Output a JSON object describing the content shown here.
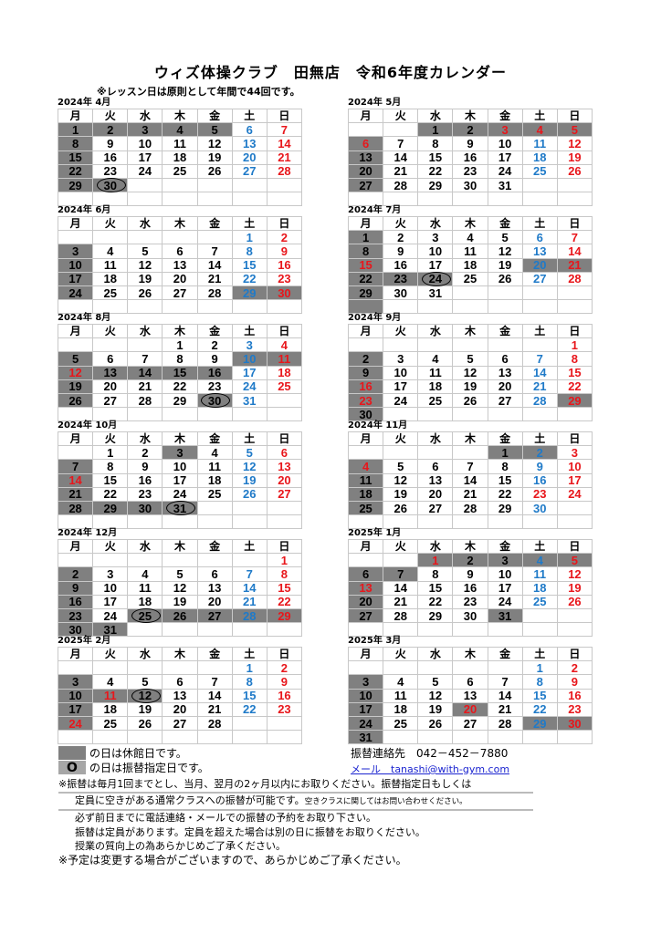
{
  "title": "ウィズ体操クラブ　田無店　令和6年度カレンダー",
  "subtitle": "※レッスン日は原則として年間で44回です。",
  "weekdays": [
    "月",
    "火",
    "水",
    "木",
    "金",
    "土",
    "日"
  ],
  "colors": {
    "saturday": "#1f7ac8",
    "holiday": "#e8161b",
    "closed_fill": "#808080",
    "grid": "#c8c8c8"
  },
  "months": [
    {
      "label": "2024年 4月",
      "start": 0,
      "days": 30,
      "closed": [
        1,
        2,
        3,
        4,
        5,
        8,
        15,
        22,
        29,
        30
      ],
      "red": [],
      "circled": [
        30
      ],
      "closed_empty_cells": []
    },
    {
      "label": "2024年 5月",
      "start": 2,
      "days": 31,
      "closed": [
        1,
        2,
        3,
        4,
        5,
        6,
        13,
        20,
        27
      ],
      "red": [
        3,
        4,
        6
      ],
      "circled": [],
      "closed_empty_cells": []
    },
    {
      "label": "2024年 6月",
      "start": 5,
      "days": 30,
      "closed": [
        3,
        10,
        17,
        24,
        29,
        30
      ],
      "red": [],
      "circled": [],
      "closed_empty_cells": []
    },
    {
      "label": "2024年 7月",
      "start": 0,
      "days": 31,
      "closed": [
        1,
        8,
        15,
        20,
        21,
        22,
        23,
        24,
        29
      ],
      "red": [
        15
      ],
      "circled": [
        24
      ],
      "closed_empty_cells": [
        35
      ]
    },
    {
      "label": "2024年 8月",
      "start": 3,
      "days": 31,
      "closed": [
        5,
        10,
        11,
        12,
        13,
        14,
        15,
        16,
        19,
        26,
        30
      ],
      "red": [
        12
      ],
      "circled": [
        30
      ],
      "closed_empty_cells": []
    },
    {
      "label": "2024年 9月",
      "start": 6,
      "days": 30,
      "closed": [
        2,
        9,
        16,
        23,
        29,
        30
      ],
      "red": [
        16,
        23
      ],
      "circled": [],
      "closed_empty_cells": []
    },
    {
      "label": "2024年 10月",
      "start": 1,
      "days": 31,
      "closed": [
        3,
        7,
        14,
        21,
        28,
        29,
        30,
        31
      ],
      "red": [
        14
      ],
      "circled": [
        31
      ],
      "closed_empty_cells": []
    },
    {
      "label": "2024年 11月",
      "start": 4,
      "days": 30,
      "closed": [
        1,
        2,
        4,
        11,
        18,
        25
      ],
      "red": [
        4,
        23
      ],
      "circled": [],
      "closed_empty_cells": []
    },
    {
      "label": "2024年 12月",
      "start": 6,
      "days": 31,
      "closed": [
        2,
        9,
        16,
        23,
        25,
        26,
        27,
        28,
        29,
        30,
        31
      ],
      "red": [],
      "circled": [
        25
      ],
      "closed_empty_cells": []
    },
    {
      "label": "2025年 1月",
      "start": 2,
      "days": 31,
      "closed": [
        1,
        2,
        3,
        4,
        5,
        6,
        7,
        13,
        20,
        27,
        31
      ],
      "red": [
        1,
        13
      ],
      "circled": [],
      "closed_empty_cells": []
    },
    {
      "label": "2025年 2月",
      "start": 5,
      "days": 28,
      "closed": [
        3,
        10,
        11,
        12,
        17,
        24
      ],
      "red": [
        11,
        24
      ],
      "circled": [
        12
      ],
      "closed_empty_cells": []
    },
    {
      "label": "2025年 3月",
      "start": 5,
      "days": 31,
      "closed": [
        3,
        10,
        17,
        20,
        24,
        29,
        30,
        31
      ],
      "red": [
        20
      ],
      "circled": [],
      "closed_empty_cells": []
    }
  ],
  "legend": {
    "closed": "の日は休館日です。",
    "makeup": "の日は振替指定日です。",
    "makeup_symbol": "O"
  },
  "contact": {
    "phone": "振替連絡先　042－452－7880",
    "email": "メール　tanashi@with-gym.com"
  },
  "notes": {
    "n1": "※振替は毎月1回までとし、当月、翌月の2ヶ月以内にお取りください。振替指定日もしくは",
    "n2": "定員に空きがある通常クラスへの振替が可能です。",
    "n2_small": "空きクラスに関してはお問い合わせください。",
    "n3": "必ず前日までに電話連絡・メールでの振替の予約をお取り下さい。",
    "n4": "振替は定員があります。定員を超えた場合は別の日に振替をお取りください。",
    "n5": "授業の質向上の為あらかじめご了承ください。",
    "n6": "※予定は変更する場合がございますので、あらかじめご了承ください。"
  }
}
